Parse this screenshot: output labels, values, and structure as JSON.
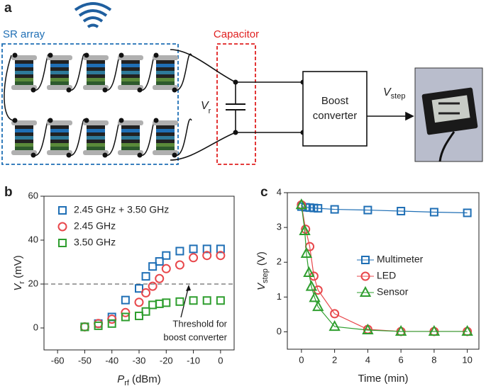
{
  "panel_labels": [
    "a",
    "b",
    "c"
  ],
  "diagram": {
    "sr_array": "SR array",
    "capacitor": "Capacitor",
    "voltage": {
      "symbol": "V",
      "subscript": "r"
    },
    "boost": [
      "Boost",
      "converter"
    ],
    "output": {
      "symbol": "V",
      "subscript": "step"
    }
  },
  "chart_data": [
    {
      "type": "scatter",
      "x_label": {
        "symbol": "P",
        "subscript": "rf",
        "unit": "(dBm)"
      },
      "y_label": {
        "symbol": "V",
        "subscript": "r",
        "unit": "(mV)"
      },
      "x": [
        -50,
        -45,
        -40,
        -35,
        -30,
        -27.5,
        -25,
        -22.5,
        -20,
        -15,
        -10,
        -5,
        0
      ],
      "series": [
        {
          "name": "2.45 GHz + 3.50 GHz",
          "color": "#1f6fb5",
          "marker": "square",
          "values": [
            0.5,
            2,
            5,
            12.7,
            18,
            23.5,
            28,
            30.3,
            33,
            35,
            36,
            36,
            36
          ]
        },
        {
          "name": "2.45 GHz",
          "color": "#e8474b",
          "marker": "circle",
          "values": [
            0.5,
            2,
            4,
            7,
            11.7,
            16,
            19,
            22.5,
            27,
            28.7,
            32,
            33,
            33
          ]
        },
        {
          "name": "3.50 GHz",
          "color": "#2e9e2e",
          "marker": "square",
          "values": [
            0.5,
            1,
            2,
            5,
            5.5,
            7.5,
            10.5,
            11,
            11.5,
            12,
            12.5,
            12.5,
            12.5
          ]
        }
      ],
      "threshold": 20,
      "annotation": [
        "Threshold for",
        "boost converter"
      ],
      "xlim": [
        -65,
        5
      ],
      "xticks": [
        -60,
        -50,
        -40,
        -30,
        -20,
        -10,
        0
      ],
      "ylim": [
        -10,
        60
      ],
      "yticks": [
        0,
        20,
        40,
        60
      ],
      "legend": "upper left",
      "lines": false
    },
    {
      "type": "line",
      "x_label": {
        "text": "Time (min)"
      },
      "y_label": {
        "symbol": "V",
        "subscript": "step",
        "unit": "(V)"
      },
      "series": [
        {
          "name": "Multimeter",
          "color": "#1f6fb5",
          "marker": "square",
          "x": [
            0,
            0.25,
            0.5,
            0.75,
            1,
            2,
            4,
            6,
            8,
            10
          ],
          "values": [
            3.6,
            3.58,
            3.57,
            3.56,
            3.55,
            3.52,
            3.5,
            3.47,
            3.44,
            3.42
          ]
        },
        {
          "name": "LED",
          "color": "#e8474b",
          "marker": "circle",
          "x": [
            0,
            0.25,
            0.5,
            0.75,
            1,
            2,
            4,
            6,
            8,
            10
          ],
          "values": [
            3.65,
            2.95,
            2.45,
            1.6,
            1.2,
            0.52,
            0.07,
            0.01,
            0.01,
            0.01
          ]
        },
        {
          "name": "Sensor",
          "color": "#2e9e2e",
          "marker": "triangle",
          "x": [
            0,
            0.2,
            0.3,
            0.45,
            0.6,
            0.8,
            1,
            2,
            4,
            6,
            8,
            10
          ],
          "values": [
            3.65,
            2.9,
            2.25,
            1.7,
            1.3,
            0.98,
            0.72,
            0.15,
            0.05,
            0.01,
            0.01,
            0.01
          ]
        }
      ],
      "xlim": [
        -0.85,
        10.7
      ],
      "xticks": [
        0,
        2,
        4,
        6,
        8,
        10
      ],
      "ylim": [
        -0.5,
        4
      ],
      "yticks": [
        0,
        1,
        2,
        3,
        4
      ],
      "legend": "center right",
      "lines": true
    }
  ]
}
